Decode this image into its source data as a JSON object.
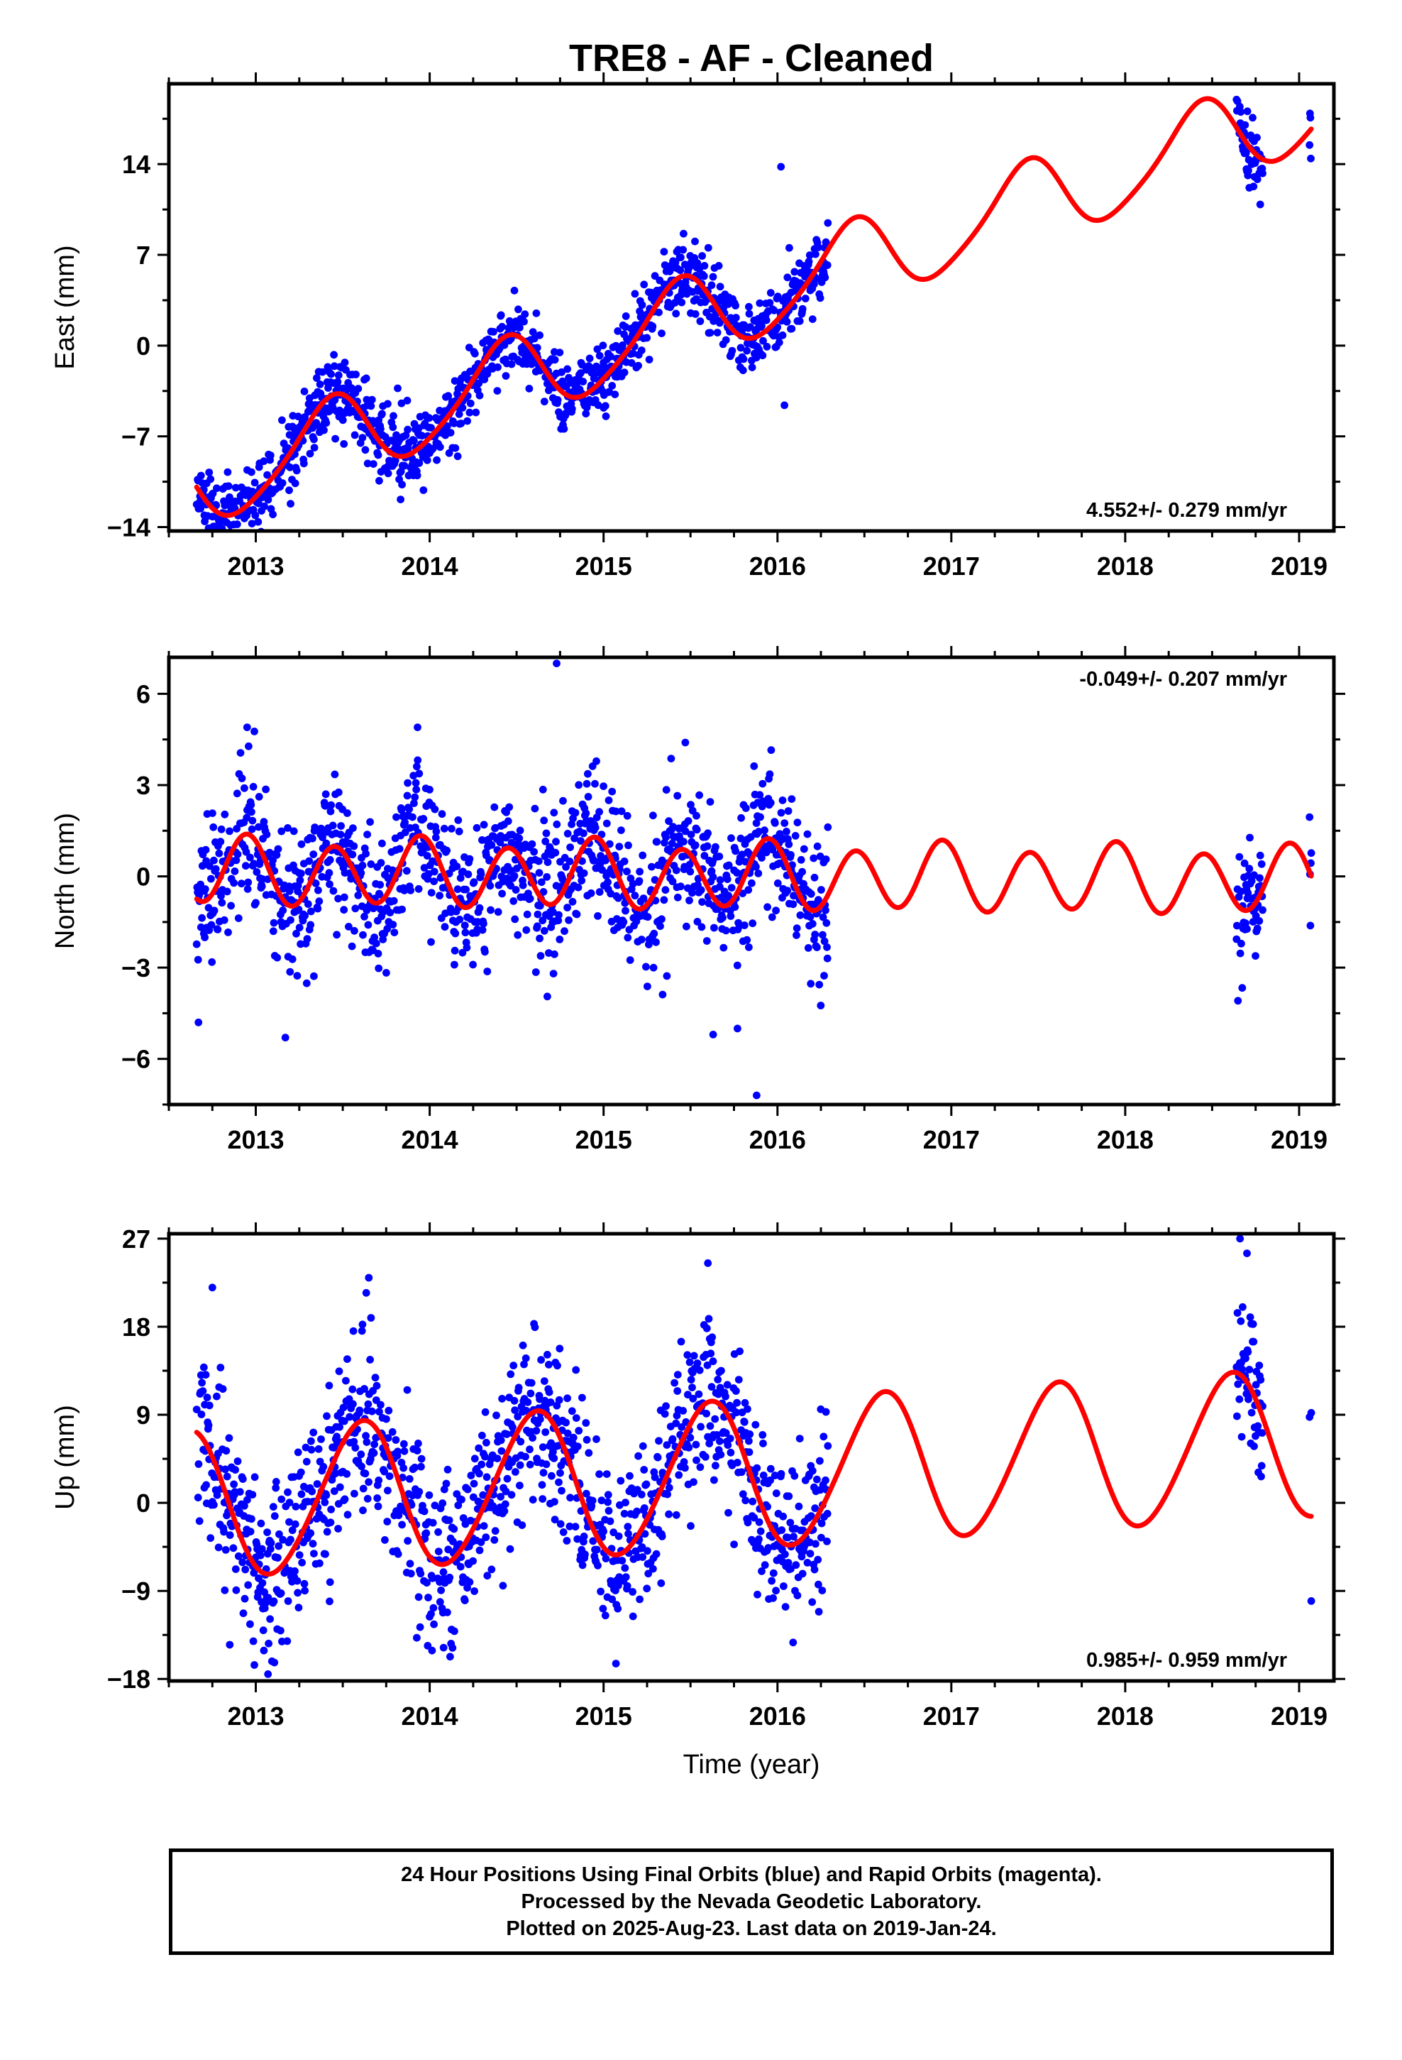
{
  "title": "TRE8  - AF - Cleaned",
  "chart_data": [
    {
      "type": "scatter",
      "name": "east",
      "ylabel": "East (mm)",
      "xlabel": "",
      "xlim": [
        2012.5,
        2019.2
      ],
      "ylim": [
        -14.3,
        20.2
      ],
      "yticks": [
        -14,
        -7,
        0,
        7,
        14
      ],
      "xticks": [
        2013,
        2014,
        2015,
        2016,
        2017,
        2018,
        2019
      ],
      "rate_label": "4.552+/- 0.279 mm/yr",
      "rate_position": "bottom-right",
      "data_ranges": [
        [
          2012.66,
          2016.29
        ],
        [
          2018.64,
          2018.79
        ],
        [
          2019.06,
          2019.07
        ]
      ],
      "model": {
        "trend_mm_per_yr": 4.552,
        "value_at_2016": 4.3,
        "annual_amp": 3.2,
        "annual_peak": 2016.42,
        "semiannual_amp": 0.5,
        "semiannual_peak": 2016.0
      },
      "noise_sd": 1.4,
      "seed": 11,
      "outliers": [
        {
          "x": 2016.02,
          "y": 13.8
        },
        {
          "x": 2016.04,
          "y": -4.6
        },
        {
          "x": 2012.78,
          "y": -13.9
        },
        {
          "x": 2015.0,
          "y": -4.8
        }
      ]
    },
    {
      "type": "scatter",
      "name": "north",
      "ylabel": "North (mm)",
      "xlabel": "",
      "xlim": [
        2012.5,
        2019.2
      ],
      "ylim": [
        -7.5,
        7.2
      ],
      "yticks": [
        -6,
        -3,
        0,
        3,
        6
      ],
      "xticks": [
        2013,
        2014,
        2015,
        2016,
        2017,
        2018,
        2019
      ],
      "rate_label": "-0.049+/- 0.207 mm/yr",
      "rate_position": "top-right",
      "data_ranges": [
        [
          2012.66,
          2016.29
        ],
        [
          2018.64,
          2018.79
        ],
        [
          2019.06,
          2019.07
        ]
      ],
      "model": {
        "trend_mm_per_yr": -0.049,
        "value_at_2016": 0.0,
        "annual_amp": 0.2,
        "annual_peak": 2015.9,
        "semiannual_amp": 1.05,
        "semiannual_peak": 2015.95
      },
      "noise_sd": 1.15,
      "seed": 23,
      "outliers": [
        {
          "x": 2014.73,
          "y": 7.0
        },
        {
          "x": 2015.88,
          "y": -7.2
        },
        {
          "x": 2015.63,
          "y": -5.2
        },
        {
          "x": 2015.77,
          "y": -5.0
        },
        {
          "x": 2013.17,
          "y": -5.3
        },
        {
          "x": 2012.67,
          "y": -4.8
        },
        {
          "x": 2015.47,
          "y": 4.4
        },
        {
          "x": 2012.95,
          "y": 4.9
        },
        {
          "x": 2013.93,
          "y": 4.9
        }
      ]
    },
    {
      "type": "scatter",
      "name": "up",
      "ylabel": "Up (mm)",
      "xlabel": "Time (year)",
      "xlim": [
        2012.5,
        2019.2
      ],
      "ylim": [
        -18.2,
        27.5
      ],
      "yticks": [
        -18,
        -9,
        0,
        9,
        18,
        27
      ],
      "xticks": [
        2013,
        2014,
        2015,
        2016,
        2017,
        2018,
        2019
      ],
      "rate_label": "0.985+/- 0.959 mm/yr",
      "rate_position": "bottom-right",
      "data_ranges": [
        [
          2012.66,
          2016.29
        ],
        [
          2018.64,
          2018.79
        ],
        [
          2019.06,
          2019.07
        ]
      ],
      "model": {
        "trend_mm_per_yr": 0.985,
        "value_at_2016": 3.0,
        "annual_amp": 7.5,
        "annual_peak": 2016.6,
        "semiannual_amp": 0.6,
        "semiannual_peak": 2016.2
      },
      "noise_sd": 4.3,
      "seed": 37,
      "outliers": [
        {
          "x": 2015.6,
          "y": 24.5
        },
        {
          "x": 2013.65,
          "y": 23.0
        },
        {
          "x": 2018.66,
          "y": 27.0
        },
        {
          "x": 2018.7,
          "y": 25.5
        },
        {
          "x": 2012.85,
          "y": -14.5
        },
        {
          "x": 2013.07,
          "y": -17.5
        },
        {
          "x": 2014.08,
          "y": -14.8
        },
        {
          "x": 2019.07,
          "y": 9.2
        },
        {
          "x": 2012.75,
          "y": 22.0
        }
      ]
    }
  ],
  "footer": {
    "line1": "24 Hour Positions Using Final Orbits (blue) and Rapid Orbits (magenta).",
    "line2": "Processed by the Nevada Geodetic Laboratory.",
    "line3": "Plotted on 2025-Aug-23. Last data on 2019-Jan-24."
  }
}
